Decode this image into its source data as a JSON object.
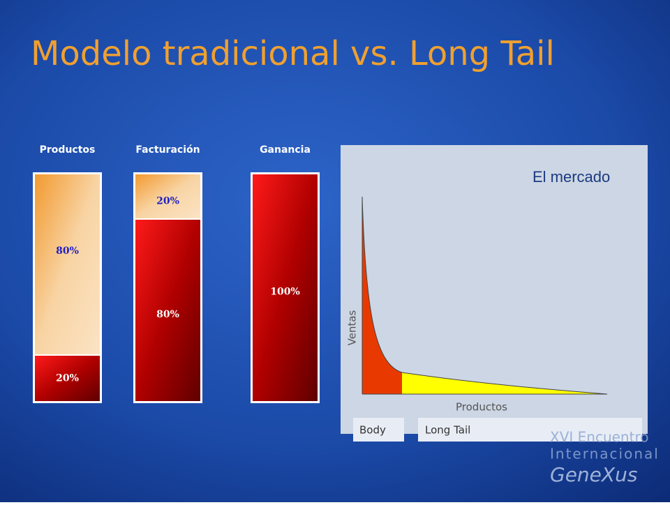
{
  "title": "Modelo tradicional vs. Long Tail",
  "bars": [
    {
      "label": "Productos",
      "segments": [
        {
          "value": 80,
          "label": "80%"
        },
        {
          "value": 20,
          "label": "20%"
        }
      ]
    },
    {
      "label": "Facturación",
      "segments": [
        {
          "value": 20,
          "label": "20%"
        },
        {
          "value": 80,
          "label": "80%"
        }
      ]
    },
    {
      "label": "Ganancia",
      "segments": [
        {
          "value": 100,
          "label": "100%"
        }
      ]
    }
  ],
  "market": {
    "title": "El mercado",
    "y_label": "Ventas",
    "x_label": "Productos",
    "body": "Body",
    "long_tail": "Long Tail"
  },
  "logo": {
    "line1": "XVI Encuentro",
    "line2": "Internacional",
    "brand": "GeneXus"
  }
}
